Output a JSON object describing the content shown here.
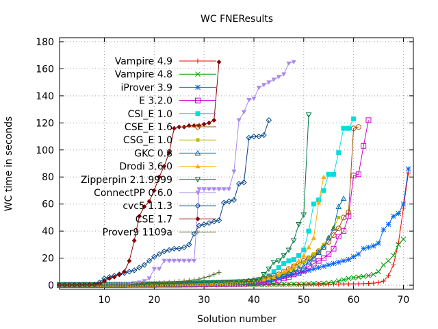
{
  "chart_data": {
    "type": "line",
    "title": "WC FNEResults",
    "xlabel": "Solution number",
    "ylabel": "WC time in seconds",
    "xlim": [
      1,
      72
    ],
    "ylim": [
      -3,
      183
    ],
    "xticks": [
      10,
      20,
      30,
      40,
      50,
      60,
      70
    ],
    "yticks": [
      0,
      20,
      40,
      60,
      80,
      100,
      120,
      140,
      160,
      180
    ],
    "grid": true,
    "legend": "top-left",
    "series": [
      {
        "name": "Vampire 4.9",
        "color": "#ff0000",
        "marker": "plus",
        "values": [
          0.1,
          0.1,
          0.1,
          0.1,
          0.1,
          0.1,
          0.1,
          0.1,
          0.1,
          0.1,
          0.1,
          0.1,
          0.1,
          0.1,
          0.1,
          0.1,
          0.1,
          0.1,
          0.1,
          0.1,
          0.1,
          0.1,
          0.1,
          0.1,
          0.1,
          0.1,
          0.2,
          0.2,
          0.2,
          0.2,
          0.2,
          0.2,
          0.2,
          0.2,
          0.3,
          0.3,
          0.3,
          0.3,
          0.3,
          0.3,
          0.3,
          0.3,
          0.4,
          0.4,
          0.4,
          0.4,
          0.5,
          0.5,
          0.5,
          0.5,
          0.6,
          0.6,
          0.6,
          0.7,
          0.7,
          0.8,
          0.8,
          0.9,
          0.9,
          1.0,
          1.0,
          1.1,
          1.3,
          1.5,
          2,
          3,
          7,
          15,
          31,
          57,
          83
        ]
      },
      {
        "name": "Vampire 4.8",
        "color": "#009900",
        "marker": "x",
        "values": [
          0.1,
          0.1,
          0.1,
          0.1,
          0.1,
          0.1,
          0.1,
          0.1,
          0.1,
          0.1,
          0.1,
          0.1,
          0.1,
          0.1,
          0.1,
          0.1,
          0.1,
          0.1,
          0.1,
          0.1,
          0.1,
          0.1,
          0.1,
          0.2,
          0.2,
          0.2,
          0.2,
          0.2,
          0.3,
          0.3,
          0.3,
          0.3,
          0.3,
          0.3,
          0.4,
          0.4,
          0.4,
          0.4,
          0.5,
          0.5,
          0.5,
          0.5,
          0.6,
          0.6,
          0.6,
          0.7,
          0.7,
          0.8,
          0.8,
          0.9,
          1.0,
          1.1,
          1.2,
          1.4,
          1.6,
          2,
          3,
          4,
          5,
          5.5,
          6,
          6.5,
          7,
          8,
          10,
          15,
          18,
          22,
          30,
          34
        ]
      },
      {
        "name": "iProver 3.9",
        "color": "#0066ff",
        "marker": "star",
        "values": [
          0.5,
          0.5,
          0.5,
          0.5,
          0.5,
          0.5,
          0.5,
          0.6,
          0.6,
          0.6,
          0.6,
          0.6,
          0.7,
          0.7,
          0.7,
          0.7,
          0.8,
          0.8,
          0.8,
          0.8,
          0.9,
          0.9,
          1.0,
          1.0,
          1.0,
          1.1,
          1.1,
          1.2,
          1.2,
          1.3,
          1.3,
          1.4,
          1.5,
          1.5,
          1.6,
          1.7,
          1.8,
          1.9,
          2.0,
          2.1,
          2.3,
          2.5,
          3,
          4,
          5,
          6,
          7,
          8,
          9,
          10,
          11,
          12,
          13,
          14,
          15,
          16,
          17,
          18,
          19,
          21,
          23,
          27,
          28,
          29,
          31,
          41,
          45,
          51,
          53,
          60,
          86
        ]
      },
      {
        "name": "E 3.2.0",
        "color": "#cc00cc",
        "marker": "square",
        "values": [
          0.1,
          0.1,
          0.1,
          0.1,
          0.1,
          0.1,
          0.1,
          0.1,
          0.1,
          0.1,
          0.1,
          0.1,
          0.1,
          0.1,
          0.2,
          0.2,
          0.2,
          0.2,
          0.2,
          0.2,
          0.3,
          0.3,
          0.3,
          0.3,
          0.3,
          0.4,
          0.4,
          0.4,
          0.5,
          0.5,
          0.6,
          0.6,
          0.7,
          0.8,
          0.9,
          1.0,
          1.1,
          1.2,
          1.4,
          1.6,
          1.8,
          2,
          2.5,
          3,
          4,
          5,
          6,
          8,
          9,
          11,
          14,
          16,
          18,
          20,
          23,
          27,
          36,
          40,
          51,
          81,
          82,
          103,
          122
        ]
      },
      {
        "name": "CSI_E 1.0",
        "color": "#00dddd",
        "marker": "filled-square",
        "values": [
          0.3,
          0.3,
          0.3,
          0.3,
          0.3,
          0.3,
          0.3,
          0.4,
          0.4,
          0.4,
          0.4,
          0.4,
          0.5,
          0.5,
          0.5,
          0.5,
          0.6,
          0.6,
          0.6,
          0.7,
          0.7,
          0.8,
          0.8,
          0.9,
          0.9,
          1.0,
          1.0,
          1.1,
          1.2,
          1.3,
          1.4,
          1.5,
          1.6,
          1.7,
          1.8,
          2,
          2.2,
          2.5,
          3,
          3.5,
          4,
          5,
          7,
          10,
          13,
          16,
          18,
          19,
          22,
          26,
          40,
          60,
          63,
          70,
          82,
          82,
          98,
          116,
          116,
          123
        ]
      },
      {
        "name": "CSE_E 1.6",
        "color": "#a05000",
        "marker": "circle",
        "values": [
          0.2,
          0.2,
          0.2,
          0.2,
          0.2,
          0.2,
          0.2,
          0.2,
          0.3,
          0.3,
          0.3,
          0.3,
          0.3,
          0.4,
          0.4,
          0.4,
          0.4,
          0.5,
          0.5,
          0.5,
          0.6,
          0.6,
          0.7,
          0.7,
          0.8,
          0.8,
          0.9,
          1.0,
          1.1,
          1.2,
          1.3,
          1.4,
          1.5,
          1.7,
          1.9,
          2.1,
          2.3,
          2.6,
          3,
          3.5,
          4,
          5,
          6,
          7,
          8,
          10,
          12,
          14,
          16,
          18,
          20,
          22,
          25,
          28,
          32,
          37,
          42,
          50,
          54,
          116,
          117
        ]
      },
      {
        "name": "CSG_E 1.0",
        "color": "#bbbb00",
        "marker": "filled-square-small",
        "values": [
          0.2,
          0.2,
          0.2,
          0.2,
          0.2,
          0.2,
          0.2,
          0.2,
          0.3,
          0.3,
          0.3,
          0.3,
          0.3,
          0.4,
          0.4,
          0.4,
          0.4,
          0.5,
          0.5,
          0.5,
          0.6,
          0.6,
          0.7,
          0.7,
          0.8,
          0.8,
          0.9,
          1.0,
          1.1,
          1.2,
          1.3,
          1.4,
          1.5,
          1.6,
          1.8,
          2,
          2.2,
          2.5,
          2.8,
          3.2,
          3.6,
          4,
          5,
          6,
          7,
          8,
          10,
          12,
          14,
          17,
          20,
          23,
          26,
          30,
          35,
          42,
          50
        ]
      },
      {
        "name": "GKC 0.8",
        "color": "#006aa8",
        "marker": "triangle",
        "values": [
          0.3,
          0.3,
          0.3,
          0.3,
          0.3,
          0.3,
          0.4,
          0.4,
          0.4,
          0.4,
          0.4,
          0.5,
          0.5,
          0.5,
          0.5,
          0.6,
          0.6,
          0.6,
          0.7,
          0.7,
          0.8,
          0.8,
          0.9,
          0.9,
          1.0,
          1.0,
          1.1,
          1.2,
          1.3,
          1.4,
          1.5,
          1.6,
          1.7,
          1.8,
          2,
          2.2,
          2.4,
          2.7,
          3,
          3.5,
          4,
          4.5,
          5,
          6,
          7,
          8,
          9,
          10,
          12,
          14,
          17,
          20,
          24,
          28,
          35,
          42,
          58,
          64
        ]
      },
      {
        "name": "Drodi 3.6.0",
        "color": "#ffaa00",
        "marker": "filled-triangle",
        "values": [
          0.2,
          0.2,
          0.2,
          0.2,
          0.2,
          0.2,
          0.2,
          0.3,
          0.3,
          0.3,
          0.3,
          0.3,
          0.3,
          0.4,
          0.4,
          0.4,
          0.4,
          0.5,
          0.5,
          0.5,
          0.6,
          0.6,
          0.7,
          0.7,
          0.8,
          0.8,
          0.9,
          1.0,
          1.0,
          1.1,
          1.2,
          1.3,
          1.4,
          1.5,
          1.7,
          1.9,
          2.1,
          2.4,
          2.8,
          3.2,
          3.7,
          4.3,
          5,
          6,
          8,
          10,
          12,
          15,
          18,
          22,
          28,
          35,
          61,
          80
        ]
      },
      {
        "name": "Zipperpin 2.1.9999",
        "color": "#007744",
        "marker": "inv-triangle",
        "values": [
          0.4,
          0.4,
          0.4,
          0.4,
          0.5,
          0.5,
          0.5,
          0.5,
          0.6,
          0.6,
          0.6,
          0.7,
          0.7,
          0.7,
          0.8,
          0.8,
          0.9,
          0.9,
          1.0,
          1.0,
          1.1,
          1.1,
          1.2,
          1.3,
          1.4,
          1.5,
          1.6,
          1.7,
          1.8,
          1.9,
          2,
          2.1,
          2.2,
          2.3,
          2.4,
          2.5,
          2.6,
          2.7,
          2.8,
          3,
          4,
          8,
          12,
          17,
          18,
          22,
          26,
          33,
          45,
          52,
          126
        ]
      },
      {
        "name": "ConnectPP 0.6.0",
        "color": "#aa88ee",
        "marker": "inv-filled-triangle",
        "values": [
          0.1,
          0.1,
          0.1,
          0.1,
          0.1,
          0.2,
          0.2,
          0.2,
          0.3,
          0.3,
          0.4,
          0.5,
          0.6,
          0.8,
          1.0,
          1.5,
          2,
          3,
          5,
          12,
          12,
          18,
          18,
          18,
          18,
          18,
          18,
          18,
          71,
          71,
          71,
          71,
          71,
          71,
          71,
          84,
          122,
          128,
          137,
          138,
          146,
          148,
          150,
          152,
          154,
          156,
          164,
          165
        ]
      },
      {
        "name": "cvc5 1.1.3",
        "color": "#004488",
        "marker": "diamond",
        "values": [
          0.3,
          0.3,
          0.3,
          0.3,
          0.3,
          0.4,
          0.4,
          0.6,
          2,
          5,
          6,
          7,
          8,
          9,
          10,
          11,
          13,
          15,
          18,
          21,
          23,
          25,
          26,
          27,
          27,
          28,
          30,
          38,
          44,
          45,
          46,
          47,
          48,
          61,
          62,
          63,
          75,
          76,
          109,
          110,
          110,
          111,
          122
        ]
      },
      {
        "name": "CSE 1.7",
        "color": "#880000",
        "marker": "filled-diamond",
        "values": [
          0.2,
          0.2,
          0.2,
          0.2,
          0.3,
          0.3,
          0.4,
          0.5,
          1,
          3,
          5,
          6,
          8,
          10,
          18,
          33,
          51,
          58,
          62,
          70,
          80,
          88,
          98,
          116,
          117,
          117,
          118,
          118,
          118,
          119,
          120,
          122,
          165
        ]
      },
      {
        "name": "Prover9 1109a",
        "color": "#556b2f",
        "marker": "plus",
        "values": [
          0.1,
          0.1,
          0.1,
          0.1,
          0.1,
          0.1,
          0.1,
          0.1,
          0.1,
          0.1,
          0.2,
          0.2,
          0.2,
          0.2,
          0.2,
          0.3,
          0.3,
          0.5,
          1,
          1.5,
          1.8,
          2,
          2.2,
          2.5,
          2.8,
          3.1,
          3.5,
          4,
          4.5,
          5.5,
          6.5,
          8,
          9.5
        ]
      }
    ]
  }
}
